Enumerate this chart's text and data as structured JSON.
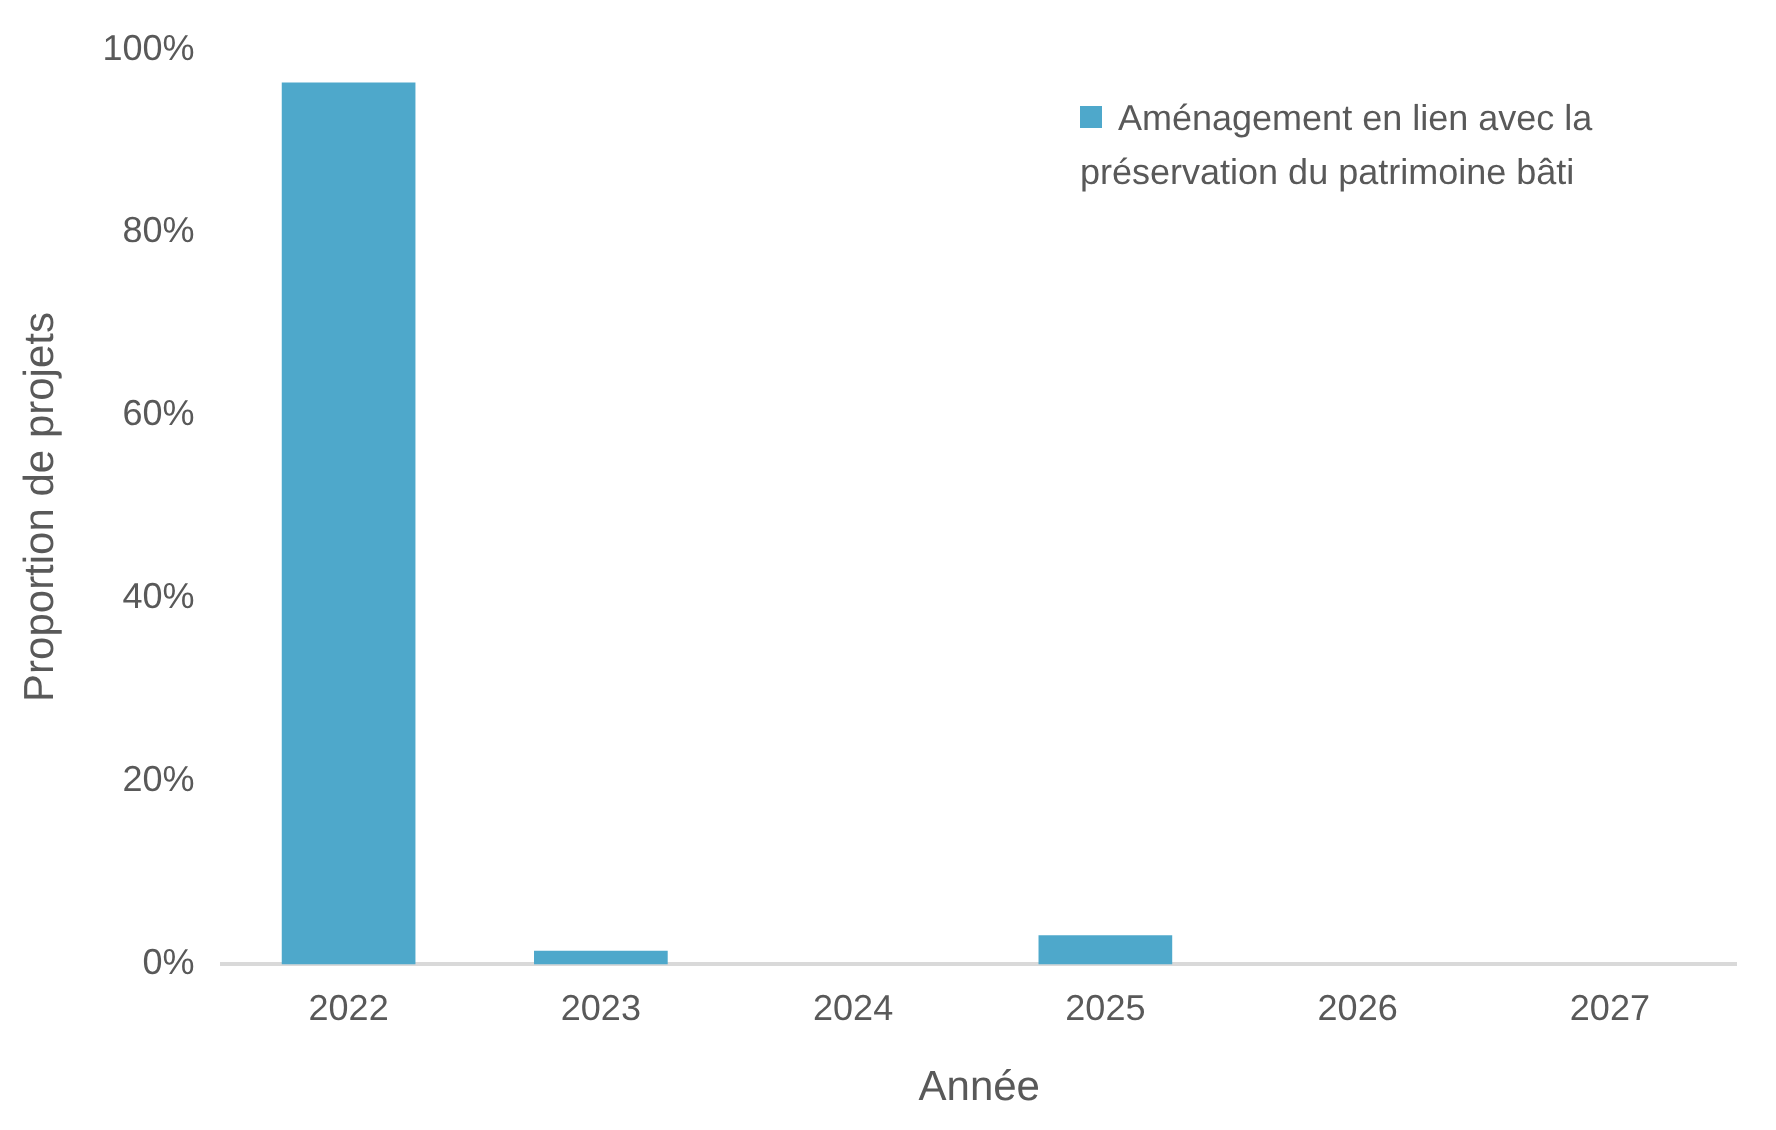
{
  "chart_data": {
    "type": "bar",
    "xlabel": "Année",
    "ylabel": "Proportion de projets",
    "categories": [
      "2022",
      "2023",
      "2024",
      "2025",
      "2026",
      "2027"
    ],
    "series": [
      {
        "name": "Aménagement en lien avec la préservation du patrimoine bâti",
        "color": "#4ea8cb",
        "values": [
          96.4,
          1.5,
          0,
          3.2,
          0,
          0
        ]
      }
    ],
    "ylim": [
      0,
      100
    ],
    "yticks": [
      {
        "value": 0,
        "label": "0%"
      },
      {
        "value": 20,
        "label": "20%"
      },
      {
        "value": 40,
        "label": "40%"
      },
      {
        "value": 60,
        "label": "60%"
      },
      {
        "value": 80,
        "label": "80%"
      },
      {
        "value": 100,
        "label": "100%"
      }
    ],
    "grid": false,
    "legend": "top right"
  }
}
